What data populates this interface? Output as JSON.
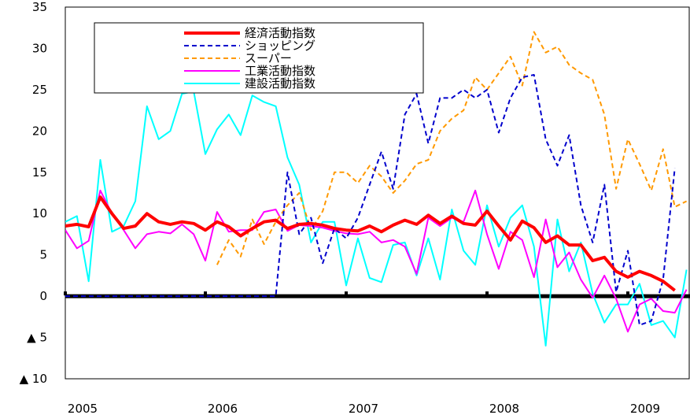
{
  "chart_data": {
    "type": "line",
    "title": "",
    "xlabel": "",
    "ylabel": "",
    "ylim": [
      -10,
      35
    ],
    "y_ticks": [
      {
        "value": 35,
        "label": "35"
      },
      {
        "value": 30,
        "label": "30"
      },
      {
        "value": 25,
        "label": "25"
      },
      {
        "value": 20,
        "label": "20"
      },
      {
        "value": 15,
        "label": "15"
      },
      {
        "value": 10,
        "label": "10"
      },
      {
        "value": 5,
        "label": "5"
      },
      {
        "value": 0,
        "label": "0"
      },
      {
        "value": -5,
        "label": "▲ 5"
      },
      {
        "value": -10,
        "label": "▲ 10"
      }
    ],
    "x_ticks": [
      "2005",
      "2006",
      "2007",
      "2008",
      "2009"
    ],
    "x_start": "2005-01",
    "x_end": "2009-06",
    "grid": false,
    "legend_position": "top-left",
    "series": [
      {
        "name": "経済活動指数",
        "color": "#ff0000",
        "dash": "solid",
        "weight": "thick",
        "values": [
          8.5,
          8.7,
          8.4,
          12.0,
          10.0,
          8.2,
          8.5,
          10.0,
          9.0,
          8.7,
          9.0,
          8.8,
          8.0,
          9.0,
          8.4,
          7.3,
          8.2,
          9.0,
          9.2,
          8.2,
          8.7,
          8.8,
          8.6,
          8.2,
          8.0,
          7.9,
          8.5,
          7.8,
          8.6,
          9.2,
          8.7,
          9.8,
          8.8,
          9.7,
          8.8,
          8.6,
          10.3,
          8.5,
          6.8,
          9.1,
          8.3,
          6.5,
          7.3,
          6.2,
          6.2,
          4.3,
          4.7,
          3.0,
          2.3,
          3.0,
          2.5,
          1.8,
          0.7
        ]
      },
      {
        "name": "ショッピング",
        "color": "#0000cc",
        "dash": "dashed",
        "weight": "normal",
        "values": [
          0,
          0,
          0,
          0,
          0,
          0,
          0,
          0,
          0,
          0,
          0,
          0,
          0,
          0,
          0,
          0,
          0,
          0,
          0,
          15,
          7.5,
          9.5,
          4.0,
          8.2,
          7.0,
          9.5,
          13.5,
          17.5,
          13.0,
          22.0,
          24.5,
          18.5,
          24.0,
          24.0,
          25.0,
          24.0,
          25.0,
          19.8,
          24.0,
          26.5,
          26.8,
          19.0,
          15.8,
          19.5,
          11.0,
          6.5,
          13.5,
          0.5,
          5.5,
          -3.5,
          -3.0,
          2.0,
          15.5
        ]
      },
      {
        "name": "スーパー",
        "color": "#ff9900",
        "dash": "dashed",
        "weight": "normal",
        "values": [
          null,
          null,
          null,
          null,
          null,
          null,
          null,
          null,
          null,
          null,
          null,
          null,
          null,
          3.8,
          6.8,
          4.8,
          9.3,
          6.3,
          9.0,
          11.0,
          12.5,
          8.0,
          10.3,
          15.0,
          15.0,
          13.7,
          15.8,
          14.5,
          12.5,
          14.0,
          16.0,
          16.5,
          20.0,
          21.5,
          22.5,
          26.5,
          25.0,
          27.0,
          29.0,
          25.5,
          32.0,
          29.5,
          30.2,
          28.0,
          27.0,
          26.2,
          22.0,
          13.0,
          19.0,
          16.0,
          12.8,
          17.8,
          10.8,
          11.5
        ]
      },
      {
        "name": "工業活動指数",
        "color": "#ff00ff",
        "dash": "solid",
        "weight": "normal",
        "values": [
          8.0,
          5.8,
          6.7,
          12.8,
          10.0,
          8.0,
          5.8,
          7.5,
          7.8,
          7.6,
          8.7,
          7.5,
          4.3,
          10.2,
          7.8,
          8.0,
          8.0,
          10.2,
          10.5,
          7.9,
          8.6,
          8.5,
          8.3,
          7.9,
          7.6,
          7.5,
          7.8,
          6.5,
          6.8,
          6.0,
          2.7,
          9.5,
          8.5,
          9.5,
          9.0,
          12.8,
          7.5,
          3.3,
          7.8,
          6.8,
          2.3,
          9.3,
          3.5,
          5.3,
          2.0,
          -0.2,
          2.5,
          -0.3,
          -4.3,
          -1.0,
          -0.3,
          -1.8,
          -2.0,
          0.8
        ]
      },
      {
        "name": "建設活動指数",
        "color": "#00ffff",
        "dash": "solid",
        "weight": "normal",
        "values": [
          9.0,
          9.7,
          1.8,
          16.5,
          7.8,
          8.5,
          11.5,
          23.0,
          19.0,
          20.0,
          24.5,
          24.8,
          17.2,
          20.2,
          22.0,
          19.5,
          24.3,
          23.5,
          23.0,
          16.8,
          13.5,
          6.5,
          9.0,
          9.0,
          1.3,
          7.0,
          2.2,
          1.7,
          6.2,
          6.5,
          2.5,
          7.0,
          2.0,
          10.5,
          5.5,
          3.8,
          11.0,
          6.0,
          9.5,
          11.0,
          6.0,
          -6.0,
          9.3,
          3.0,
          6.5,
          0.3,
          -3.2,
          -1.0,
          -1.0,
          1.5,
          -3.5,
          -3.0,
          -5.0,
          3.2
        ]
      }
    ]
  }
}
